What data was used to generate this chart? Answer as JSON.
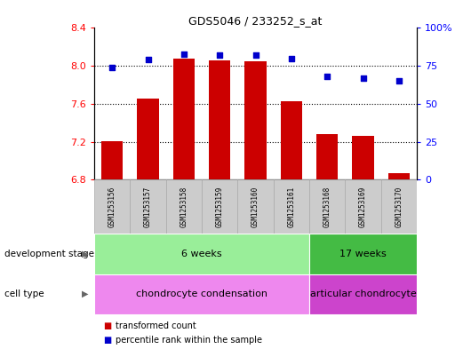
{
  "title": "GDS5046 / 233252_s_at",
  "samples": [
    "GSM1253156",
    "GSM1253157",
    "GSM1253158",
    "GSM1253159",
    "GSM1253160",
    "GSM1253161",
    "GSM1253168",
    "GSM1253169",
    "GSM1253170"
  ],
  "transformed_counts": [
    7.21,
    7.66,
    8.08,
    8.06,
    8.05,
    7.63,
    7.28,
    7.26,
    6.87
  ],
  "percentile_ranks": [
    74,
    79,
    83,
    82,
    82,
    80,
    68,
    67,
    65
  ],
  "ylim_left": [
    6.8,
    8.4
  ],
  "ylim_right": [
    0,
    100
  ],
  "yticks_left": [
    6.8,
    7.2,
    7.6,
    8.0,
    8.4
  ],
  "yticks_right": [
    0,
    25,
    50,
    75,
    100
  ],
  "bar_color": "#cc0000",
  "dot_color": "#0000cc",
  "bar_bottom": 6.8,
  "dev_groups": [
    {
      "label": "6 weeks",
      "start": 0,
      "end": 5,
      "color": "#99ee99"
    },
    {
      "label": "17 weeks",
      "start": 6,
      "end": 8,
      "color": "#44bb44"
    }
  ],
  "cell_groups": [
    {
      "label": "chondrocyte condensation",
      "start": 0,
      "end": 5,
      "color": "#ee88ee"
    },
    {
      "label": "articular chondrocyte",
      "start": 6,
      "end": 8,
      "color": "#cc44cc"
    }
  ],
  "dev_stage_label": "development stage",
  "cell_type_label": "cell type",
  "legend_bar_label": "transformed count",
  "legend_dot_label": "percentile rank within the sample",
  "sample_box_color": "#cccccc",
  "sample_box_edge": "#aaaaaa"
}
